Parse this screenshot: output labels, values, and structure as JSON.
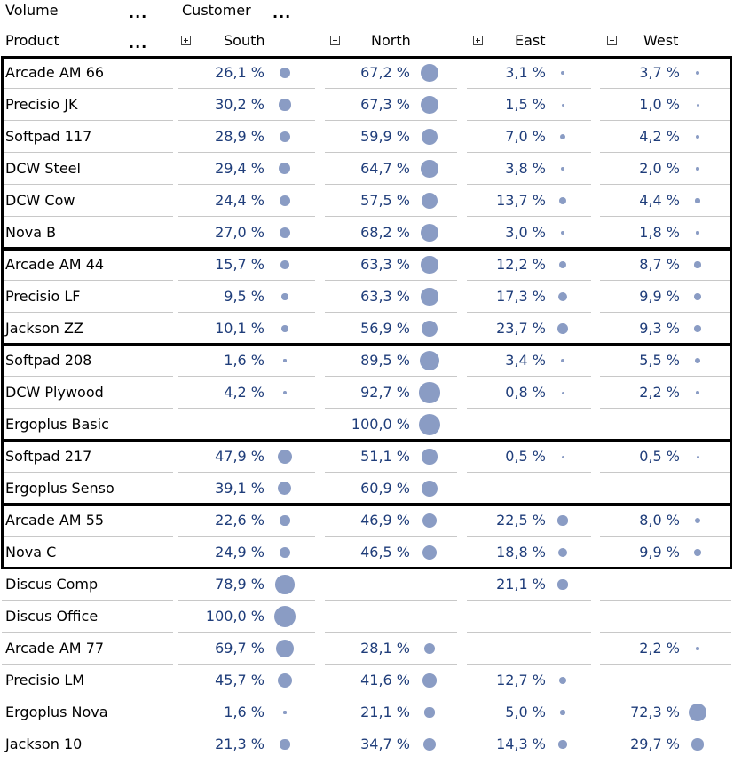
{
  "header": {
    "row_dim_label": "Volume",
    "col_dim_label": "Customer",
    "product_label": "Product",
    "more_symbol": "...",
    "regions": [
      "South",
      "North",
      "East",
      "West"
    ]
  },
  "rows": [
    {
      "product": "Arcade AM 66",
      "values": [
        "26,1 %",
        "67,2 %",
        "3,1 %",
        "3,7 %"
      ],
      "shares": [
        26.1,
        67.2,
        3.1,
        3.7
      ]
    },
    {
      "product": "Precisio JK",
      "values": [
        "30,2 %",
        "67,3 %",
        "1,5 %",
        "1,0 %"
      ],
      "shares": [
        30.2,
        67.3,
        1.5,
        1.0
      ]
    },
    {
      "product": "Softpad 117",
      "values": [
        "28,9 %",
        "59,9 %",
        "7,0 %",
        "4,2 %"
      ],
      "shares": [
        28.9,
        59.9,
        7.0,
        4.2
      ]
    },
    {
      "product": "DCW Steel",
      "values": [
        "29,4 %",
        "64,7 %",
        "3,8 %",
        "2,0 %"
      ],
      "shares": [
        29.4,
        64.7,
        3.8,
        2.0
      ]
    },
    {
      "product": "DCW Cow",
      "values": [
        "24,4 %",
        "57,5 %",
        "13,7 %",
        "4,4 %"
      ],
      "shares": [
        24.4,
        57.5,
        13.7,
        4.4
      ]
    },
    {
      "product": "Nova B",
      "values": [
        "27,0 %",
        "68,2 %",
        "3,0 %",
        "1,8 %"
      ],
      "shares": [
        27.0,
        68.2,
        3.0,
        1.8
      ]
    },
    {
      "product": "Arcade AM 44",
      "values": [
        "15,7 %",
        "63,3 %",
        "12,2 %",
        "8,7 %"
      ],
      "shares": [
        15.7,
        63.3,
        12.2,
        8.7
      ]
    },
    {
      "product": "Precisio LF",
      "values": [
        "9,5 %",
        "63,3 %",
        "17,3 %",
        "9,9 %"
      ],
      "shares": [
        9.5,
        63.3,
        17.3,
        9.9
      ]
    },
    {
      "product": "Jackson ZZ",
      "values": [
        "10,1 %",
        "56,9 %",
        "23,7 %",
        "9,3 %"
      ],
      "shares": [
        10.1,
        56.9,
        23.7,
        9.3
      ]
    },
    {
      "product": "Softpad 208",
      "values": [
        "1,6 %",
        "89,5 %",
        "3,4 %",
        "5,5 %"
      ],
      "shares": [
        1.6,
        89.5,
        3.4,
        5.5
      ]
    },
    {
      "product": "DCW Plywood",
      "values": [
        "4,2 %",
        "92,7 %",
        "0,8 %",
        "2,2 %"
      ],
      "shares": [
        4.2,
        92.7,
        0.8,
        2.2
      ]
    },
    {
      "product": "Ergoplus Basic",
      "values": [
        "",
        "100,0 %",
        "",
        ""
      ],
      "shares": [
        null,
        100.0,
        null,
        null
      ]
    },
    {
      "product": "Softpad 217",
      "values": [
        "47,9 %",
        "51,1 %",
        "0,5 %",
        "0,5 %"
      ],
      "shares": [
        47.9,
        51.1,
        0.5,
        0.5
      ]
    },
    {
      "product": "Ergoplus Senso",
      "values": [
        "39,1 %",
        "60,9 %",
        "",
        ""
      ],
      "shares": [
        39.1,
        60.9,
        null,
        null
      ]
    },
    {
      "product": "Arcade AM 55",
      "values": [
        "22,6 %",
        "46,9 %",
        "22,5 %",
        "8,0 %"
      ],
      "shares": [
        22.6,
        46.9,
        22.5,
        8.0
      ]
    },
    {
      "product": "Nova C",
      "values": [
        "24,9 %",
        "46,5 %",
        "18,8 %",
        "9,9 %"
      ],
      "shares": [
        24.9,
        46.5,
        18.8,
        9.9
      ]
    },
    {
      "product": "Discus Comp",
      "values": [
        "78,9 %",
        "",
        "21,1 %",
        ""
      ],
      "shares": [
        78.9,
        null,
        21.1,
        null
      ]
    },
    {
      "product": "Discus Office",
      "values": [
        "100,0 %",
        "",
        "",
        ""
      ],
      "shares": [
        100.0,
        null,
        null,
        null
      ]
    },
    {
      "product": "Arcade AM 77",
      "values": [
        "69,7 %",
        "28,1 %",
        "",
        "2,2 %"
      ],
      "shares": [
        69.7,
        28.1,
        null,
        2.2
      ]
    },
    {
      "product": "Precisio LM",
      "values": [
        "45,7 %",
        "41,6 %",
        "12,7 %",
        ""
      ],
      "shares": [
        45.7,
        41.6,
        12.7,
        null
      ]
    },
    {
      "product": "Ergoplus Nova",
      "values": [
        "1,6 %",
        "21,1 %",
        "5,0 %",
        "72,3 %"
      ],
      "shares": [
        1.6,
        21.1,
        5.0,
        72.3
      ]
    },
    {
      "product": "Jackson 10",
      "values": [
        "21,3 %",
        "34,7 %",
        "14,3 %",
        "29,7 %"
      ],
      "shares": [
        21.3,
        34.7,
        14.3,
        29.7
      ]
    }
  ],
  "groups": [
    [
      0,
      5
    ],
    [
      6,
      8
    ],
    [
      9,
      11
    ],
    [
      12,
      13
    ],
    [
      14,
      15
    ]
  ],
  "colors": {
    "bubble": "#8a9cc4",
    "value_text": "#1f3d7a",
    "row_line": "#c8c8c8",
    "group_border": "#000000"
  }
}
